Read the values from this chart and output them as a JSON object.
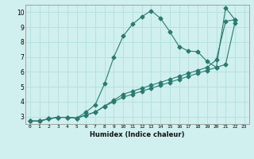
{
  "xlabel": "Humidex (Indice chaleur)",
  "bg_color": "#cff0ee",
  "grid_color": "#b8e0dc",
  "line_color": "#2a7a70",
  "xlim": [
    -0.5,
    23.5
  ],
  "ylim": [
    2.5,
    10.5
  ],
  "xticks": [
    0,
    1,
    2,
    3,
    4,
    5,
    6,
    7,
    8,
    9,
    10,
    11,
    12,
    13,
    14,
    15,
    16,
    17,
    18,
    19,
    20,
    21,
    22,
    23
  ],
  "yticks": [
    3,
    4,
    5,
    6,
    7,
    8,
    9,
    10
  ],
  "line1_x": [
    0,
    1,
    2,
    3,
    4,
    5,
    6,
    7,
    8,
    9,
    10,
    11,
    12,
    13,
    14,
    15,
    16,
    17,
    18,
    19,
    20,
    21,
    22,
    23
  ],
  "line1_y": [
    2.7,
    2.7,
    2.85,
    2.95,
    2.95,
    2.9,
    3.3,
    3.8,
    5.2,
    7.0,
    8.4,
    9.2,
    9.7,
    10.1,
    9.6,
    8.7,
    7.7,
    7.4,
    7.35,
    6.7,
    6.3,
    10.3,
    9.5,
    null
  ],
  "line2_x": [
    0,
    1,
    2,
    3,
    4,
    5,
    6,
    7,
    8,
    9,
    10,
    11,
    12,
    13,
    14,
    15,
    16,
    17,
    18,
    19,
    20,
    21,
    22,
    23
  ],
  "line2_y": [
    2.7,
    2.7,
    2.85,
    2.95,
    2.95,
    2.9,
    3.1,
    3.3,
    3.7,
    4.1,
    4.5,
    4.7,
    4.9,
    5.1,
    5.3,
    5.5,
    5.7,
    5.9,
    6.1,
    6.3,
    6.8,
    9.4,
    9.5,
    null
  ],
  "line3_x": [
    0,
    1,
    2,
    3,
    4,
    5,
    6,
    7,
    8,
    9,
    10,
    11,
    12,
    13,
    14,
    15,
    16,
    17,
    18,
    19,
    20,
    21,
    22,
    23
  ],
  "line3_y": [
    2.7,
    2.7,
    2.85,
    2.95,
    2.95,
    2.9,
    3.1,
    3.3,
    3.7,
    4.0,
    4.3,
    4.5,
    4.7,
    4.9,
    5.1,
    5.3,
    5.5,
    5.7,
    5.9,
    6.1,
    6.3,
    6.5,
    9.3,
    null
  ]
}
